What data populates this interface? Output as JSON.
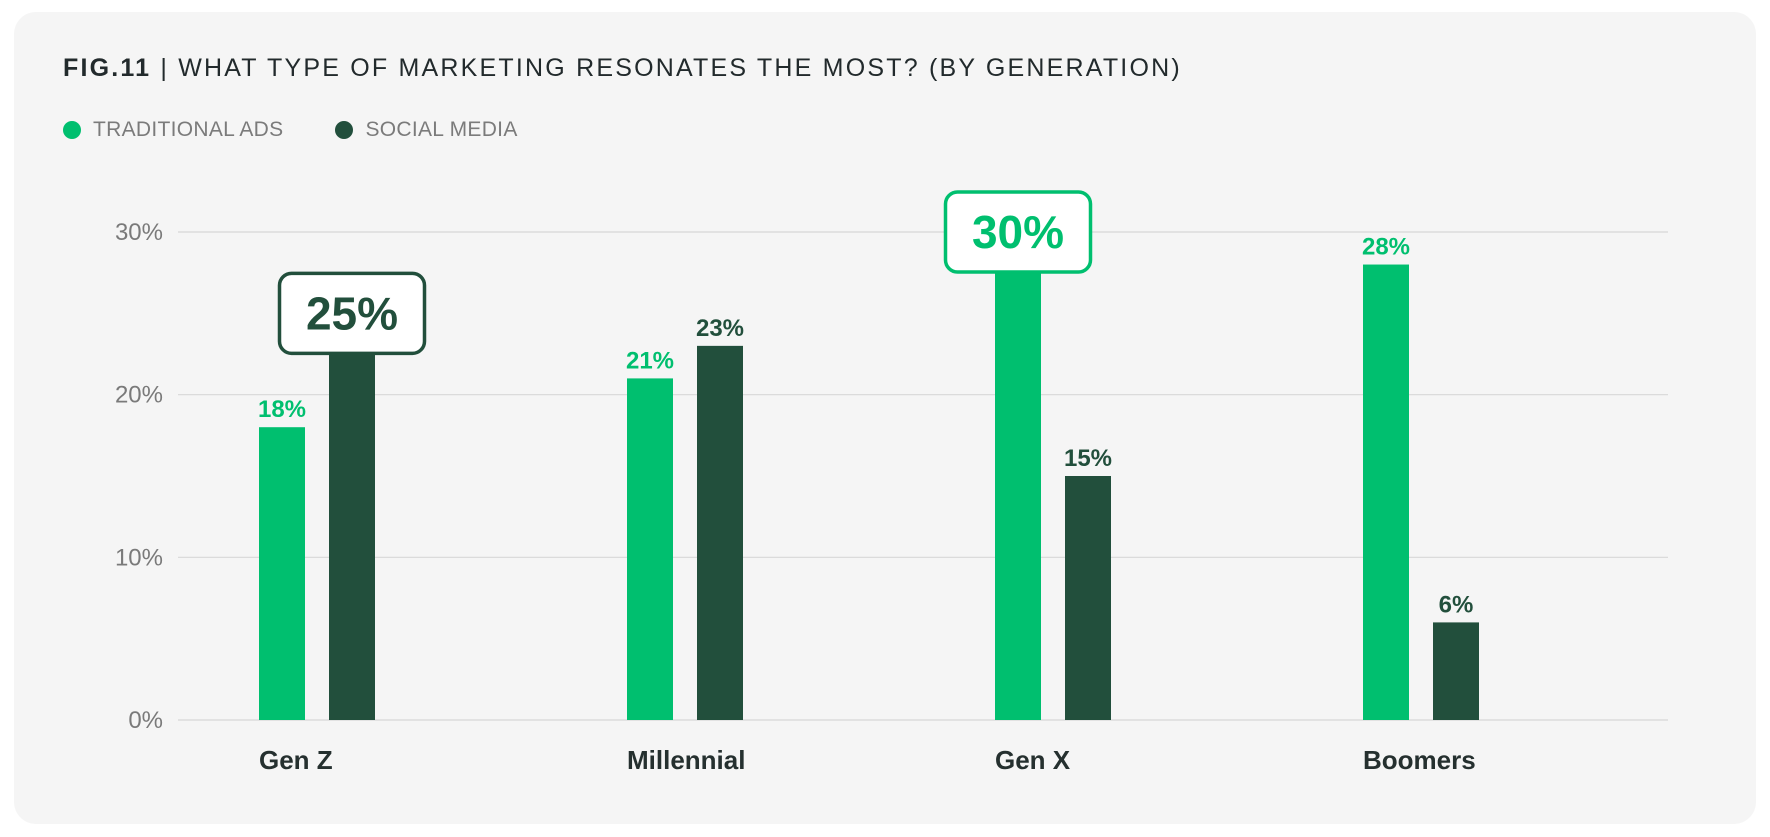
{
  "header": {
    "fig_label": "FIG.11",
    "title_text": " | WHAT TYPE OF MARKETING RESONATES THE MOST? (BY GENERATION)"
  },
  "legend": [
    {
      "label": "TRADITIONAL ADS",
      "color": "#00bf6f"
    },
    {
      "label": "SOCIAL MEDIA",
      "color": "#224f3c"
    }
  ],
  "chart_data": {
    "type": "bar",
    "title": "WHAT TYPE OF MARKETING RESONATES THE MOST? (BY GENERATION)",
    "categories": [
      "Gen Z",
      "Millennial",
      "Gen X",
      "Boomers"
    ],
    "series": [
      {
        "name": "TRADITIONAL ADS",
        "color": "#00bf6f",
        "values": [
          18,
          21,
          30,
          28
        ],
        "labels": [
          "18%",
          "21%",
          "30%",
          "28%"
        ]
      },
      {
        "name": "SOCIAL MEDIA",
        "color": "#224f3c",
        "values": [
          25,
          23,
          15,
          6
        ],
        "labels": [
          "25%",
          "23%",
          "15%",
          "6%"
        ]
      }
    ],
    "highlights": [
      {
        "category_index": 0,
        "series_index": 1
      },
      {
        "category_index": 2,
        "series_index": 0
      }
    ],
    "yticks": [
      0,
      10,
      20,
      30
    ],
    "ytick_labels": [
      "0%",
      "10%",
      "20%",
      "30%"
    ],
    "ylim": [
      0,
      30
    ],
    "xlabel": "",
    "ylabel": "",
    "grid": true,
    "legend_position": "top-left"
  }
}
